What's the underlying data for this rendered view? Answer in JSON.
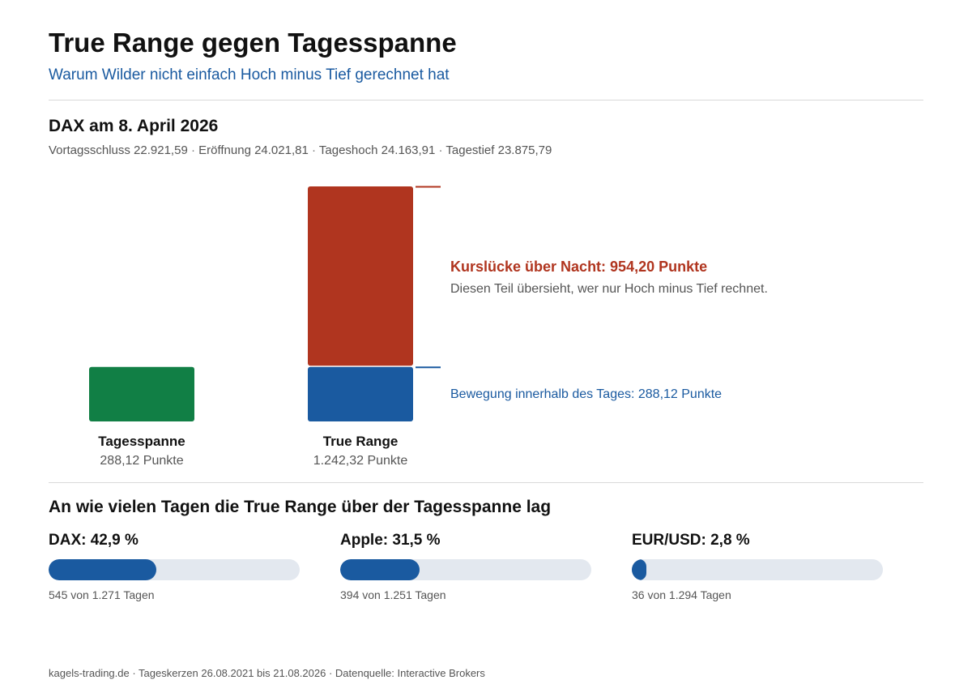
{
  "header": {
    "title": "True Range gegen Tagesspanne",
    "subtitle": "Warum Wilder nicht einfach Hoch minus Tief gerechnet hat"
  },
  "example": {
    "heading": "DAX am 8. April 2026",
    "prices": [
      "Vortagsschluss 22.921,59",
      "Eröffnung 24.021,81",
      "Tageshoch 24.163,91",
      "Tagestief 23.875,79"
    ],
    "separator": " · "
  },
  "chart_data": {
    "type": "bar",
    "categories": [
      "Tagesspanne",
      "True Range"
    ],
    "values": [
      288.12,
      1242.32
    ],
    "value_labels": [
      "288,12 Punkte",
      "1.242,32 Punkte"
    ],
    "stacks": [
      [
        {
          "component": "intraday",
          "value": 288.12
        }
      ],
      [
        {
          "component": "intraday",
          "value": 288.12
        },
        {
          "component": "gap",
          "value": 954.2
        }
      ]
    ],
    "annotations": {
      "gap_label": "Kurslücke über Nacht: 954,20 Punkte",
      "gap_note": "Diesen Teil übersieht, wer nur Hoch minus Tief rechnet.",
      "intraday_label": "Bewegung innerhalb des Tages: 288,12 Punkte"
    },
    "colors": {
      "tagesspanne": "#117f45",
      "intraday": "#1a5aa0",
      "gap": "#b0351f"
    }
  },
  "stats": {
    "heading": "An wie vielen Tagen die True Range über der Tagesspanne lag",
    "items": [
      {
        "title": "DAX: 42,9 %",
        "share": 0.429,
        "detail": "545 von 1.271 Tagen"
      },
      {
        "title": "Apple: 31,5 %",
        "share": 0.315,
        "detail": "394 von 1.251 Tagen"
      },
      {
        "title": "EUR/USD: 2,8 %",
        "share": 0.028,
        "detail": "36 von 1.294 Tagen"
      }
    ]
  },
  "footer": "kagels-trading.de · Tageskerzen 26.08.2021 bis 21.08.2026 · Datenquelle: Interactive Brokers"
}
